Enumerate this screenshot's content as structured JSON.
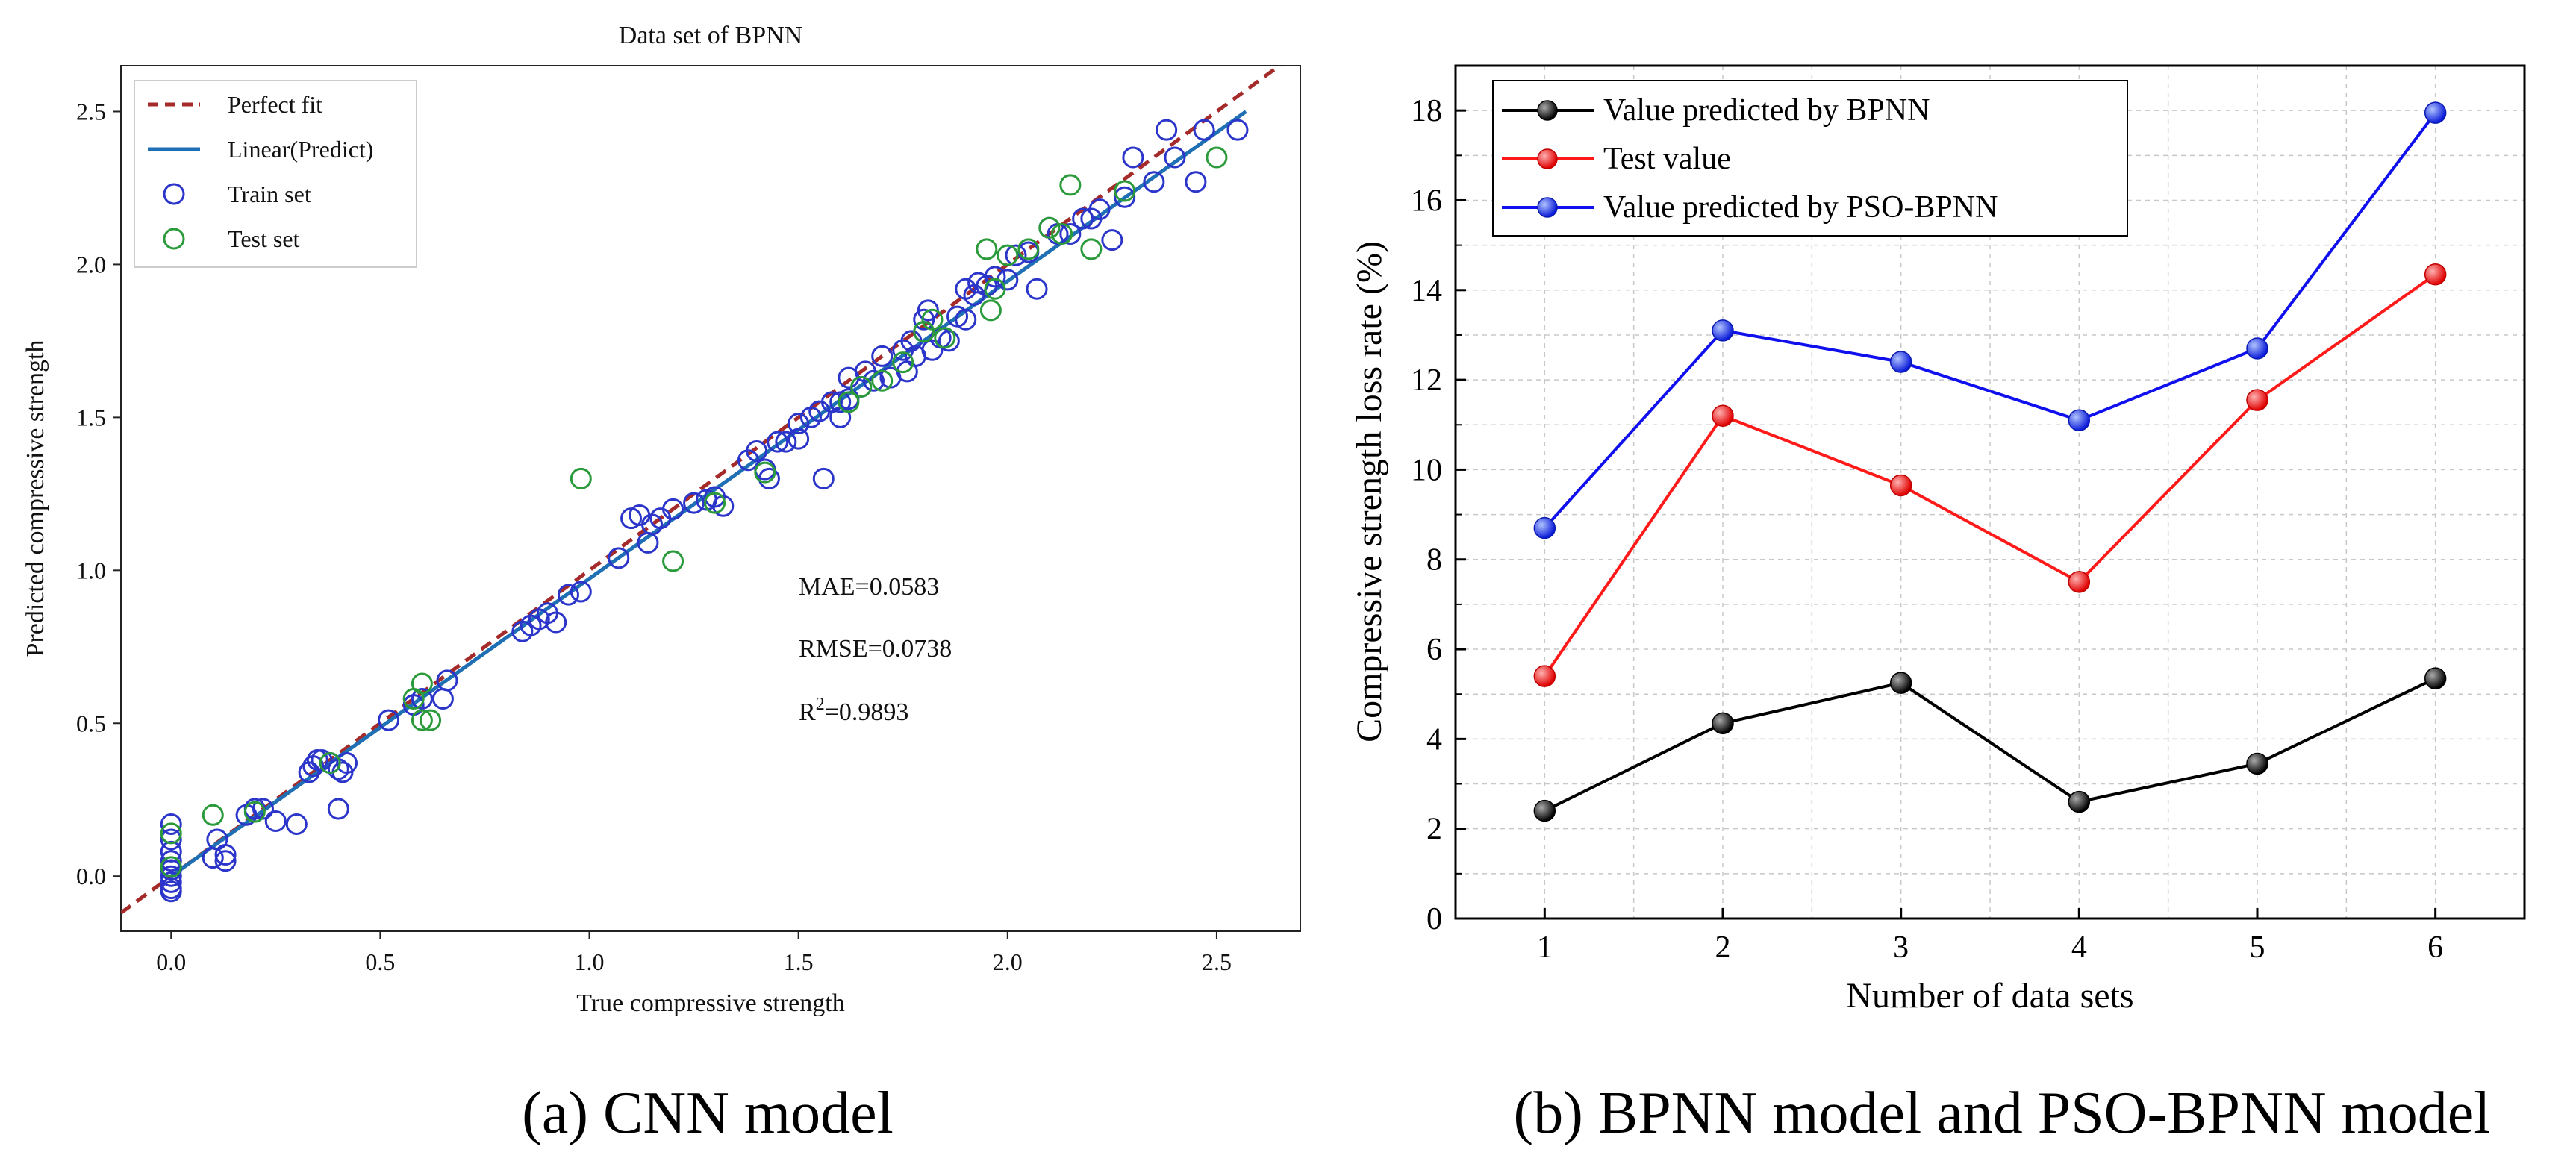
{
  "figure": {
    "caption_a": "(a) CNN model",
    "caption_b": "(b) BPNN model and PSO-BPNN model"
  },
  "chart_data": [
    {
      "type": "scatter",
      "title": "Data set of BPNN",
      "xlabel": "True compressive strength",
      "ylabel": "Predicted compressive strength",
      "xlim": [
        -0.12,
        2.7
      ],
      "ylim": [
        -0.18,
        2.65
      ],
      "xticks": [
        0.0,
        0.5,
        1.0,
        1.5,
        2.0,
        2.5
      ],
      "yticks": [
        0.0,
        0.5,
        1.0,
        1.5,
        2.0,
        2.5
      ],
      "xtick_labels": [
        "0.0",
        "0.5",
        "1.0",
        "1.5",
        "2.0",
        "2.5"
      ],
      "ytick_labels": [
        "0.0",
        "0.5",
        "1.0",
        "1.5",
        "2.0",
        "2.5"
      ],
      "grid": false,
      "legend_position": "top-left",
      "legend": [
        {
          "label": "Perfect fit",
          "style": "dashed-line",
          "color": "#a52a2a"
        },
        {
          "label": "Linear(Predict)",
          "style": "line",
          "color": "#1f6fb4"
        },
        {
          "label": "Train set",
          "style": "open-circle",
          "color": "#2b35c9"
        },
        {
          "label": "Test set",
          "style": "open-circle",
          "color": "#2a9a3a"
        }
      ],
      "perfect_fit": {
        "x": [
          -0.12,
          2.7
        ],
        "y": [
          -0.12,
          2.7
        ]
      },
      "linear_fit": {
        "x": [
          0.0,
          2.57
        ],
        "y": [
          0.0,
          2.5
        ]
      },
      "annotations": {
        "mae": "MAE=0.0583",
        "rmse": "RMSE=0.0738",
        "r2_prefix": "R",
        "r2_sup": "2",
        "r2_value": "=0.9893"
      },
      "series": [
        {
          "name": "Train set",
          "color": "#2b35c9",
          "points": [
            [
              0.0,
              -0.05
            ],
            [
              0.0,
              -0.04
            ],
            [
              0.0,
              -0.02
            ],
            [
              0.0,
              0.0
            ],
            [
              0.0,
              0.02
            ],
            [
              0.0,
              0.05
            ],
            [
              0.0,
              0.08
            ],
            [
              0.0,
              0.12
            ],
            [
              0.0,
              0.17
            ],
            [
              0.1,
              0.06
            ],
            [
              0.11,
              0.12
            ],
            [
              0.13,
              0.07
            ],
            [
              0.13,
              0.05
            ],
            [
              0.18,
              0.2
            ],
            [
              0.2,
              0.22
            ],
            [
              0.22,
              0.22
            ],
            [
              0.25,
              0.18
            ],
            [
              0.3,
              0.17
            ],
            [
              0.33,
              0.34
            ],
            [
              0.34,
              0.36
            ],
            [
              0.35,
              0.38
            ],
            [
              0.36,
              0.38
            ],
            [
              0.38,
              0.37
            ],
            [
              0.4,
              0.35
            ],
            [
              0.41,
              0.34
            ],
            [
              0.42,
              0.37
            ],
            [
              0.4,
              0.22
            ],
            [
              0.52,
              0.51
            ],
            [
              0.58,
              0.56
            ],
            [
              0.6,
              0.58
            ],
            [
              0.65,
              0.58
            ],
            [
              0.66,
              0.64
            ],
            [
              0.84,
              0.8
            ],
            [
              0.86,
              0.82
            ],
            [
              0.88,
              0.84
            ],
            [
              0.9,
              0.86
            ],
            [
              0.92,
              0.83
            ],
            [
              0.95,
              0.92
            ],
            [
              0.98,
              0.93
            ],
            [
              1.07,
              1.04
            ],
            [
              1.1,
              1.17
            ],
            [
              1.12,
              1.18
            ],
            [
              1.14,
              1.09
            ],
            [
              1.15,
              1.15
            ],
            [
              1.17,
              1.17
            ],
            [
              1.2,
              1.2
            ],
            [
              1.25,
              1.22
            ],
            [
              1.28,
              1.23
            ],
            [
              1.3,
              1.24
            ],
            [
              1.32,
              1.21
            ],
            [
              1.38,
              1.36
            ],
            [
              1.4,
              1.39
            ],
            [
              1.42,
              1.33
            ],
            [
              1.43,
              1.3
            ],
            [
              1.45,
              1.42
            ],
            [
              1.47,
              1.42
            ],
            [
              1.5,
              1.43
            ],
            [
              1.5,
              1.48
            ],
            [
              1.53,
              1.5
            ],
            [
              1.55,
              1.52
            ],
            [
              1.56,
              1.3
            ],
            [
              1.58,
              1.55
            ],
            [
              1.6,
              1.5
            ],
            [
              1.6,
              1.55
            ],
            [
              1.62,
              1.56
            ],
            [
              1.62,
              1.63
            ],
            [
              1.65,
              1.6
            ],
            [
              1.66,
              1.65
            ],
            [
              1.68,
              1.62
            ],
            [
              1.7,
              1.7
            ],
            [
              1.72,
              1.63
            ],
            [
              1.75,
              1.72
            ],
            [
              1.76,
              1.65
            ],
            [
              1.77,
              1.75
            ],
            [
              1.78,
              1.7
            ],
            [
              1.8,
              1.78
            ],
            [
              1.8,
              1.82
            ],
            [
              1.81,
              1.85
            ],
            [
              1.82,
              1.72
            ],
            [
              1.84,
              1.76
            ],
            [
              1.86,
              1.75
            ],
            [
              1.88,
              1.83
            ],
            [
              1.9,
              1.82
            ],
            [
              1.9,
              1.92
            ],
            [
              1.92,
              1.9
            ],
            [
              1.93,
              1.94
            ],
            [
              1.95,
              1.93
            ],
            [
              1.97,
              1.96
            ],
            [
              2.0,
              1.95
            ],
            [
              2.02,
              2.03
            ],
            [
              2.05,
              2.04
            ],
            [
              2.07,
              1.92
            ],
            [
              2.1,
              2.12
            ],
            [
              2.12,
              2.1
            ],
            [
              2.15,
              2.1
            ],
            [
              2.18,
              2.15
            ],
            [
              2.2,
              2.15
            ],
            [
              2.22,
              2.18
            ],
            [
              2.25,
              2.08
            ],
            [
              2.28,
              2.22
            ],
            [
              2.3,
              2.35
            ],
            [
              2.35,
              2.27
            ],
            [
              2.38,
              2.44
            ],
            [
              2.4,
              2.35
            ],
            [
              2.45,
              2.27
            ],
            [
              2.47,
              2.44
            ],
            [
              2.55,
              2.44
            ]
          ]
        },
        {
          "name": "Test set",
          "color": "#2a9a3a",
          "points": [
            [
              0.0,
              0.03
            ],
            [
              0.0,
              0.14
            ],
            [
              0.1,
              0.2
            ],
            [
              0.2,
              0.21
            ],
            [
              0.38,
              0.37
            ],
            [
              0.58,
              0.58
            ],
            [
              0.6,
              0.51
            ],
            [
              0.6,
              0.63
            ],
            [
              0.62,
              0.51
            ],
            [
              0.98,
              1.3
            ],
            [
              1.2,
              1.03
            ],
            [
              1.3,
              1.22
            ],
            [
              1.42,
              1.32
            ],
            [
              1.62,
              1.55
            ],
            [
              1.65,
              1.6
            ],
            [
              1.7,
              1.62
            ],
            [
              1.75,
              1.68
            ],
            [
              1.8,
              1.78
            ],
            [
              1.82,
              1.82
            ],
            [
              1.85,
              1.76
            ],
            [
              1.95,
              2.05
            ],
            [
              1.96,
              1.85
            ],
            [
              1.97,
              1.92
            ],
            [
              2.0,
              2.03
            ],
            [
              2.05,
              2.05
            ],
            [
              2.1,
              2.12
            ],
            [
              2.13,
              2.1
            ],
            [
              2.15,
              2.26
            ],
            [
              2.2,
              2.05
            ],
            [
              2.28,
              2.24
            ],
            [
              2.5,
              2.35
            ]
          ]
        }
      ]
    },
    {
      "type": "line",
      "title": "",
      "xlabel": "Number of data sets",
      "ylabel": "Compressive strength loss rate (%)",
      "x": [
        1,
        2,
        3,
        4,
        5,
        6
      ],
      "xlim": [
        0.5,
        6.5
      ],
      "ylim": [
        0,
        19
      ],
      "xticks": [
        1,
        2,
        3,
        4,
        5,
        6
      ],
      "yticks": [
        0,
        2,
        4,
        6,
        8,
        10,
        12,
        14,
        16,
        18
      ],
      "xtick_labels": [
        "1",
        "2",
        "3",
        "4",
        "5",
        "6"
      ],
      "ytick_labels": [
        "0",
        "2",
        "4",
        "6",
        "8",
        "10",
        "12",
        "14",
        "16",
        "18"
      ],
      "grid": true,
      "legend_position": "top-left",
      "series": [
        {
          "name": "Value predicted by BPNN",
          "color": "#000000",
          "values": [
            2.4,
            4.35,
            5.25,
            2.6,
            3.45,
            5.35
          ]
        },
        {
          "name": "Test value",
          "color": "#ff1a1a",
          "values": [
            5.4,
            11.2,
            9.65,
            7.5,
            11.55,
            14.35
          ]
        },
        {
          "name": "Value predicted by PSO-BPNN",
          "color": "#1010ee",
          "values": [
            8.7,
            13.1,
            12.4,
            11.1,
            12.7,
            17.95
          ]
        }
      ]
    }
  ]
}
